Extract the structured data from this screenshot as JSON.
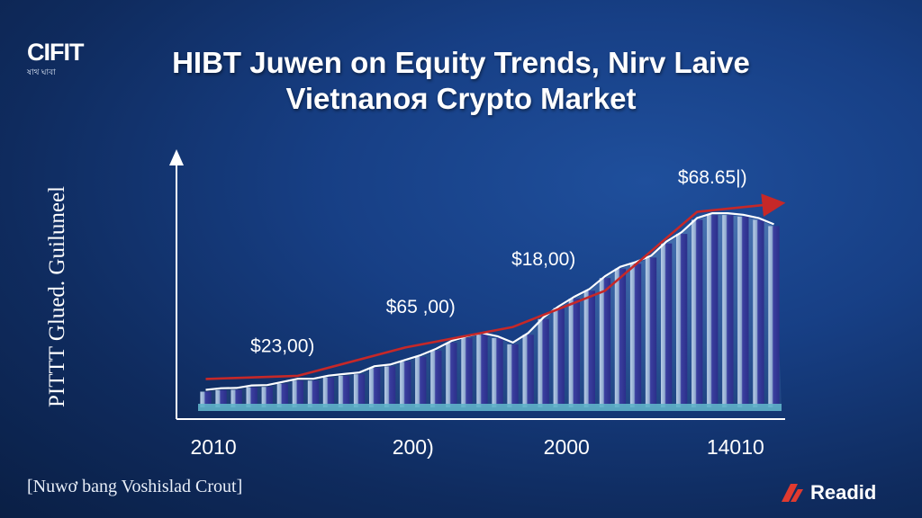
{
  "logo": {
    "main": "CIFIT",
    "sub": "ষাথ ঘাবা"
  },
  "footer": {
    "source": "[Nuwơ bang Voshislad Crout]",
    "brand": "Readid",
    "brand_icon": "slash-logo-icon",
    "brand_color": "#e03a2f"
  },
  "chart_data": {
    "type": "bar",
    "title": [
      "HIBT Juwen on Equity Trends, Nirv Laive",
      "Vietnanoя Crypto Market"
    ],
    "ylabel": "PITTT Glued. Guiluneel",
    "xlabel": "",
    "x_tick_labels": [
      {
        "label": "2010",
        "at": 0.5
      },
      {
        "label": "200)",
        "at": 13.5
      },
      {
        "label": "2000",
        "at": 23.5
      },
      {
        "label": "14010",
        "at": 34.5
      }
    ],
    "ylim": [
      0,
      75000
    ],
    "values": [
      5000,
      5500,
      5600,
      6400,
      6500,
      7500,
      8500,
      8500,
      9500,
      10000,
      10500,
      12500,
      13000,
      14500,
      16000,
      18000,
      20500,
      22000,
      23000,
      22000,
      20000,
      23000,
      28000,
      31500,
      34500,
      37000,
      41000,
      44000,
      45500,
      47500,
      52000,
      55000,
      59500,
      61000,
      61000,
      60500,
      59500,
      57500
    ],
    "trend_line": [
      {
        "x": 0,
        "y": 9000
      },
      {
        "x": 6,
        "y": 10000
      },
      {
        "x": 13,
        "y": 19000
      },
      {
        "x": 20,
        "y": 25500
      },
      {
        "x": 26,
        "y": 37000
      },
      {
        "x": 32,
        "y": 62000
      },
      {
        "x": 37,
        "y": 64500
      }
    ],
    "annotations": [
      {
        "label": "$23,00)",
        "x": 5,
        "y": 17500
      },
      {
        "label": "$65 ,00)",
        "x": 14,
        "y": 30000
      },
      {
        "label": "$18,00)",
        "x": 22,
        "y": 45000
      },
      {
        "label": "$68.65|)",
        "x": 33,
        "y": 71000
      }
    ],
    "colors": {
      "bar": "#3a3f9e",
      "bar_highlight": "#9fb8d8",
      "outline": "#ffffff",
      "trend": "#c62828",
      "axis": "#ffffff"
    },
    "grid": false,
    "legend": "none"
  }
}
